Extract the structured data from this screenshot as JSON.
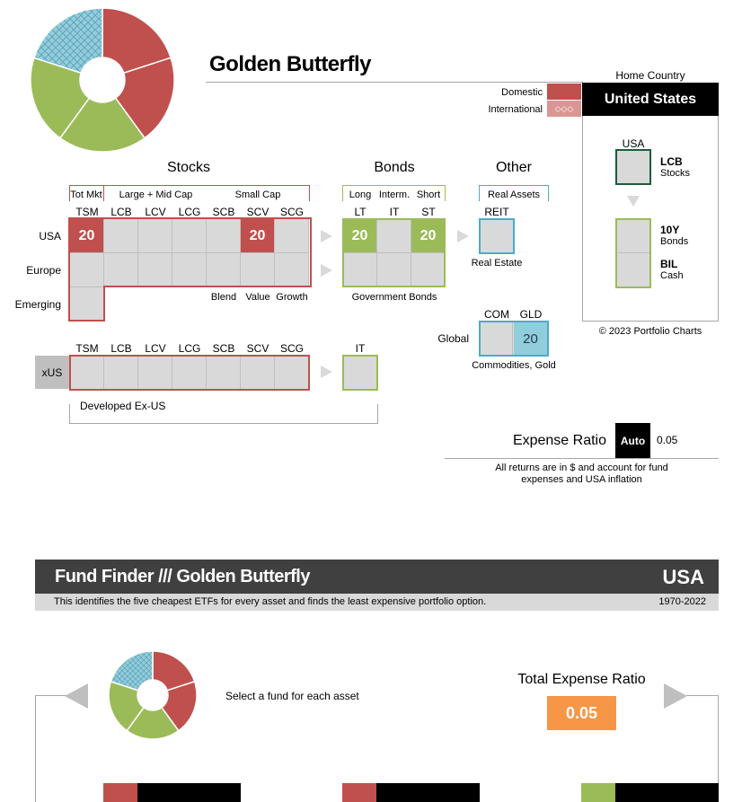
{
  "title": "Golden Butterfly",
  "pie": {
    "slices": [
      {
        "asset": "USA TSM",
        "value": 20,
        "color": "#c0504d",
        "hatch": false
      },
      {
        "asset": "USA SCV",
        "value": 20,
        "color": "#c0504d",
        "hatch": false
      },
      {
        "asset": "USA ST",
        "value": 20,
        "color": "#9bbb59",
        "hatch": false
      },
      {
        "asset": "USA LT",
        "value": 20,
        "color": "#9bbb59",
        "hatch": false
      },
      {
        "asset": "GLD",
        "value": 20,
        "color": "#92cddc",
        "hatch": true
      }
    ]
  },
  "home_country": {
    "label": "Home Country",
    "value": "United States",
    "domestic_label": "Domestic",
    "international_label": "International",
    "international_glyph": "◇◇◇",
    "usa_label": "USA",
    "stock_code": "LCB",
    "stock_sub": "Stocks",
    "bond_code": "10Y",
    "bond_sub": "Bonds",
    "cash_code": "BIL",
    "cash_sub": "Cash",
    "copyright": "© 2023 Portfolio Charts"
  },
  "stocks": {
    "heading": "Stocks",
    "group_labels": [
      "Tot Mkt",
      "Large + Mid Cap",
      "Small Cap"
    ],
    "columns": [
      "TSM",
      "LCB",
      "LCV",
      "LCG",
      "SCB",
      "SCV",
      "SCG"
    ],
    "rows": [
      "USA",
      "Europe",
      "Emerging"
    ],
    "usa_values": [
      "20",
      "",
      "",
      "",
      "",
      "20",
      ""
    ],
    "style_labels": [
      "Blend",
      "Value",
      "Growth"
    ]
  },
  "bonds": {
    "heading": "Bonds",
    "group_labels": [
      "Long",
      "Interm.",
      "Short"
    ],
    "columns": [
      "LT",
      "IT",
      "ST"
    ],
    "usa_values": [
      "20",
      "",
      "20"
    ],
    "footer": "Government Bonds"
  },
  "other": {
    "heading": "Other",
    "group_label": "Real Assets",
    "reit_label": "REIT",
    "reit_sub": "Real Estate",
    "global_label": "Global",
    "com_label": "COM",
    "gld_label": "GLD",
    "gld_value": "20",
    "commodities_sub": "Commodities, Gold"
  },
  "xus": {
    "row_label": "xUS",
    "columns": [
      "TSM",
      "LCB",
      "LCV",
      "LCG",
      "SCB",
      "SCV",
      "SCG"
    ],
    "bond_column": "IT",
    "footer": "Developed Ex-US"
  },
  "expense": {
    "label": "Expense Ratio",
    "auto_label": "Auto",
    "value": "0.05",
    "note_line1": "All returns are in $ and account for fund",
    "note_line2": "expenses and USA inflation"
  },
  "fund_finder": {
    "title": "Fund Finder /// Golden Butterfly",
    "country": "USA",
    "description": "This identifies the five cheapest ETFs for every asset and finds the least expensive portfolio option.",
    "years": "1970-2022",
    "instruction": "Select a fund for each asset",
    "total_label": "Total Expense Ratio",
    "total_value": "0.05"
  },
  "colors": {
    "stock": "#c0504d",
    "bond": "#9bbb59",
    "other": "#4bacc6",
    "gold": "#92cddc",
    "header_bg": "#404040",
    "accent": "#f79646"
  }
}
